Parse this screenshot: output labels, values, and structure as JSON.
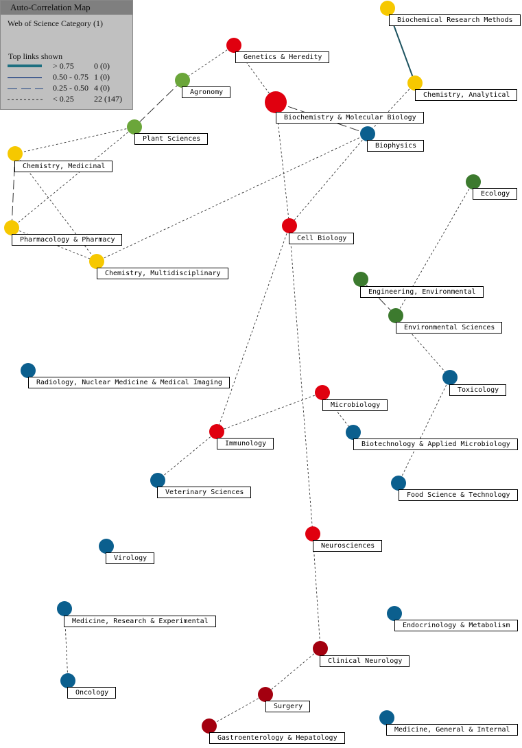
{
  "legend": {
    "title": "Auto-Correlation Map",
    "subtitle": "Web of Science Category (1)",
    "links_heading": "Top links shown",
    "rows": [
      {
        "range": "> 0.75",
        "count": "0 (0)",
        "style": "thick"
      },
      {
        "range": "0.50 - 0.75",
        "count": "1 (0)",
        "style": "solid"
      },
      {
        "range": "0.25 - 0.50",
        "count": "4 (0)",
        "style": "longdash"
      },
      {
        "range": "< 0.25",
        "count": "22 (147)",
        "style": "dotted"
      }
    ]
  },
  "colors": {
    "red": "#e0000f",
    "yellow": "#f6c800",
    "green": "#6ba63a",
    "darkgreen": "#3c7a2e",
    "blue": "#0b5f8e",
    "darkred": "#a3000f",
    "solid_link": "#1d5360",
    "link": "#333333"
  },
  "nodes": [
    {
      "label": "Biochemical Research Methods",
      "color": "yellow"
    },
    {
      "label": "Genetics & Heredity",
      "color": "red"
    },
    {
      "label": "Agronomy",
      "color": "green"
    },
    {
      "label": "Chemistry, Analytical",
      "color": "yellow"
    },
    {
      "label": "Biochemistry & Molecular Biology",
      "color": "red",
      "size": "large"
    },
    {
      "label": "Plant Sciences",
      "color": "green"
    },
    {
      "label": "Biophysics",
      "color": "blue"
    },
    {
      "label": "Chemistry, Medicinal",
      "color": "yellow"
    },
    {
      "label": "Ecology",
      "color": "darkgreen"
    },
    {
      "label": "Pharmacology & Pharmacy",
      "color": "yellow"
    },
    {
      "label": "Cell Biology",
      "color": "red"
    },
    {
      "label": "Chemistry, Multidisciplinary",
      "color": "yellow"
    },
    {
      "label": "Engineering, Environmental",
      "color": "darkgreen"
    },
    {
      "label": "Environmental Sciences",
      "color": "darkgreen"
    },
    {
      "label": "Radiology, Nuclear Medicine & Medical Imaging",
      "color": "blue"
    },
    {
      "label": "Toxicology",
      "color": "blue"
    },
    {
      "label": "Microbiology",
      "color": "red"
    },
    {
      "label": "Immunology",
      "color": "red"
    },
    {
      "label": "Biotechnology & Applied Microbiology",
      "color": "blue"
    },
    {
      "label": "Veterinary Sciences",
      "color": "blue"
    },
    {
      "label": "Food Science & Technology",
      "color": "blue"
    },
    {
      "label": "Neurosciences",
      "color": "red"
    },
    {
      "label": "Virology",
      "color": "blue"
    },
    {
      "label": "Medicine, Research & Experimental",
      "color": "blue"
    },
    {
      "label": "Endocrinology & Metabolism",
      "color": "blue"
    },
    {
      "label": "Clinical Neurology",
      "color": "darkred"
    },
    {
      "label": "Oncology",
      "color": "blue"
    },
    {
      "label": "Surgery",
      "color": "darkred"
    },
    {
      "label": "Gastroenterology & Hepatology",
      "color": "darkred"
    },
    {
      "label": "Medicine, General & Internal",
      "color": "blue"
    }
  ],
  "links": [
    {
      "from": "Biochemical Research Methods",
      "to": "Chemistry, Analytical",
      "style": "solid"
    },
    {
      "from": "Genetics & Heredity",
      "to": "Agronomy",
      "style": "dotted"
    },
    {
      "from": "Genetics & Heredity",
      "to": "Biochemistry & Molecular Biology",
      "style": "dotted"
    },
    {
      "from": "Agronomy",
      "to": "Plant Sciences",
      "style": "longdash"
    },
    {
      "from": "Plant Sciences",
      "to": "Chemistry, Medicinal",
      "style": "dotted"
    },
    {
      "from": "Plant Sciences",
      "to": "Pharmacology & Pharmacy",
      "style": "dotted"
    },
    {
      "from": "Chemistry, Medicinal",
      "to": "Pharmacology & Pharmacy",
      "style": "longdash"
    },
    {
      "from": "Chemistry, Medicinal",
      "to": "Chemistry, Multidisciplinary",
      "style": "dotted"
    },
    {
      "from": "Pharmacology & Pharmacy",
      "to": "Chemistry, Multidisciplinary",
      "style": "dotted"
    },
    {
      "from": "Chemistry, Multidisciplinary",
      "to": "Biophysics",
      "style": "dotted"
    },
    {
      "from": "Biochemistry & Molecular Biology",
      "to": "Biophysics",
      "style": "longdash"
    },
    {
      "from": "Biochemistry & Molecular Biology",
      "to": "Cell Biology",
      "style": "dotted"
    },
    {
      "from": "Chemistry, Analytical",
      "to": "Biophysics",
      "style": "dotted"
    },
    {
      "from": "Biophysics",
      "to": "Cell Biology",
      "style": "dotted"
    },
    {
      "from": "Cell Biology",
      "to": "Immunology",
      "style": "dotted"
    },
    {
      "from": "Cell Biology",
      "to": "Neurosciences",
      "style": "dotted"
    },
    {
      "from": "Ecology",
      "to": "Environmental Sciences",
      "style": "dotted"
    },
    {
      "from": "Engineering, Environmental",
      "to": "Environmental Sciences",
      "style": "longdash"
    },
    {
      "from": "Environmental Sciences",
      "to": "Toxicology",
      "style": "dotted"
    },
    {
      "from": "Toxicology",
      "to": "Food Science & Technology",
      "style": "dotted"
    },
    {
      "from": "Microbiology",
      "to": "Immunology",
      "style": "dotted"
    },
    {
      "from": "Microbiology",
      "to": "Biotechnology & Applied Microbiology",
      "style": "dotted"
    },
    {
      "from": "Immunology",
      "to": "Veterinary Sciences",
      "style": "dotted"
    },
    {
      "from": "Neurosciences",
      "to": "Clinical Neurology",
      "style": "dotted"
    },
    {
      "from": "Clinical Neurology",
      "to": "Surgery",
      "style": "dotted"
    },
    {
      "from": "Surgery",
      "to": "Gastroenterology & Hepatology",
      "style": "dotted"
    },
    {
      "from": "Medicine, Research & Experimental",
      "to": "Oncology",
      "style": "dotted"
    }
  ]
}
